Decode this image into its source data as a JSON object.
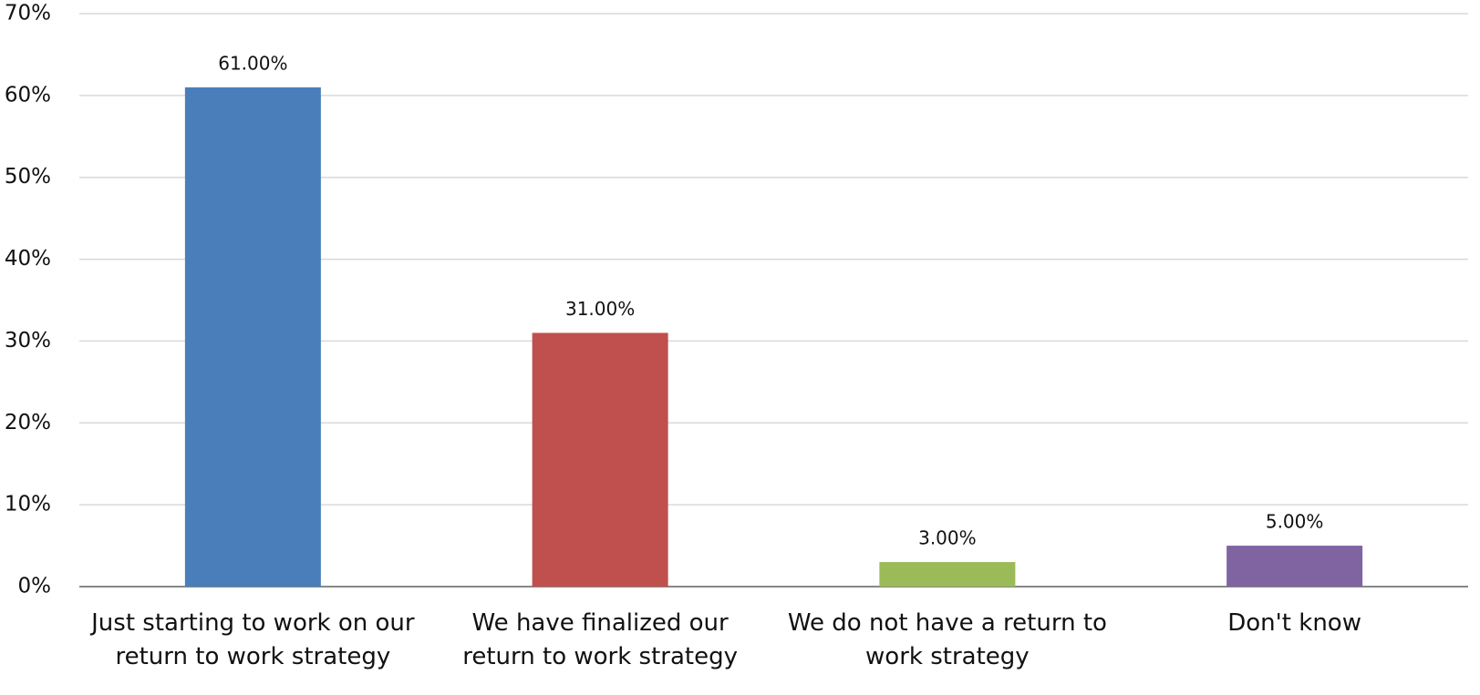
{
  "chart_data": {
    "type": "bar",
    "categories": [
      "Just starting to work on our return to work strategy",
      "We have finalized our return to work strategy",
      "We do not have a return to work strategy",
      "Don't know"
    ],
    "values": [
      61,
      31,
      3,
      5
    ],
    "value_labels": [
      "61.00%",
      "31.00%",
      "3.00%",
      "5.00%"
    ],
    "colors": [
      "#4a7ebb",
      "#c0504d",
      "#9bbb59",
      "#8064a2"
    ],
    "ylim": [
      0,
      70
    ],
    "yticks": [
      {
        "value": 0,
        "label": "0%"
      },
      {
        "value": 10,
        "label": "10%"
      },
      {
        "value": 20,
        "label": "20%"
      },
      {
        "value": 30,
        "label": "30%"
      },
      {
        "value": 40,
        "label": "40%"
      },
      {
        "value": 50,
        "label": "50%"
      },
      {
        "value": 60,
        "label": "60%"
      },
      {
        "value": 70,
        "label": "70%"
      }
    ],
    "grid": true
  }
}
